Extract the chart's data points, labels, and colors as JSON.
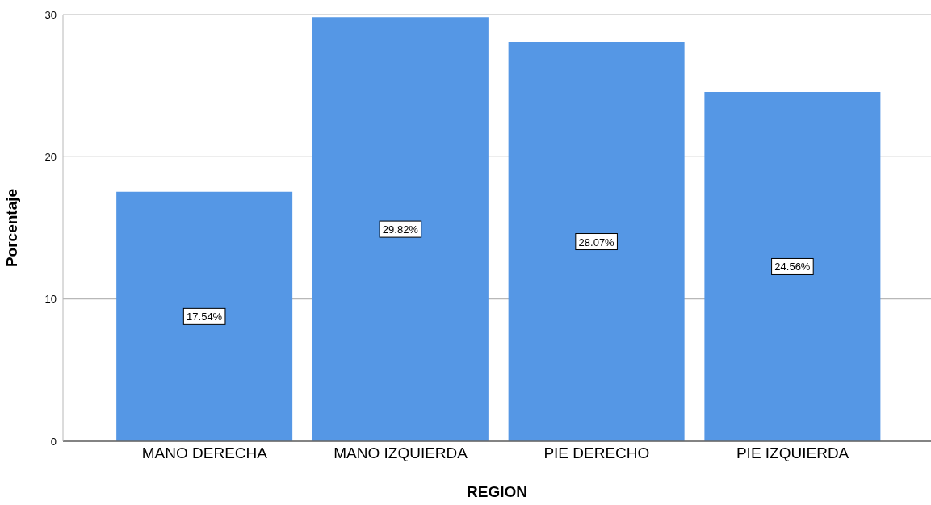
{
  "chart_data": {
    "type": "bar",
    "xlabel": "REGION",
    "ylabel": "Porcentaje",
    "categories": [
      "MANO DERECHA",
      "MANO IZQUIERDA",
      "PIE DERECHO",
      "PIE IZQUIERDA"
    ],
    "values": [
      17.54,
      29.82,
      28.07,
      24.56
    ],
    "value_labels": [
      "17.54%",
      "29.82%",
      "28.07%",
      "24.56%"
    ],
    "color": "#5597e5",
    "ylim": [
      0,
      30
    ],
    "yticks": [
      0,
      10,
      20,
      30
    ],
    "grid": "y"
  }
}
